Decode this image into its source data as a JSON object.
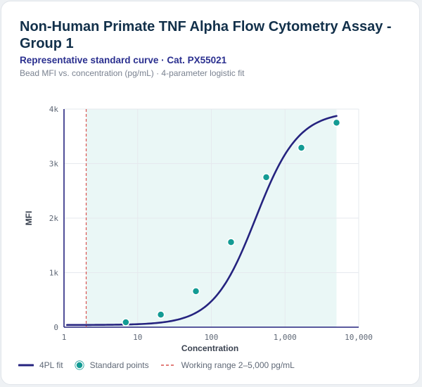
{
  "header": {
    "title": "Non-Human Primate TNF Alpha Flow Cytometry Assay - Group 1",
    "subtitle": "Representative standard curve · Cat. PX55021",
    "caption": "Bead MFI vs. concentration (pg/mL) · 4-parameter logistic fit"
  },
  "legend": {
    "fit_label": "4PL fit",
    "points_label": "Standard points",
    "range_label": "Working range 2–5,000 pg/mL"
  },
  "colors": {
    "fit": "#25237f",
    "points": "#139b94",
    "range_line": "#d9534f",
    "range_band": "#eaf7f6"
  },
  "chart_data": {
    "type": "scatter",
    "title": "",
    "xlabel": "Concentration",
    "ylabel": "MFI",
    "x_scale": "log",
    "xlim": [
      1,
      10000
    ],
    "ylim": [
      0,
      4000
    ],
    "x_ticks": [
      1,
      10,
      100,
      1000,
      10000
    ],
    "x_tick_labels": [
      "1",
      "10",
      "100",
      "1,000",
      "10,000"
    ],
    "y_ticks": [
      0,
      1000,
      2000,
      3000,
      4000
    ],
    "y_tick_labels": [
      "0",
      "1k",
      "2k",
      "3k",
      "4k"
    ],
    "grid": true,
    "working_range": [
      2,
      5000
    ],
    "series": [
      {
        "name": "Standard points",
        "x": [
          6.9,
          20.6,
          61.7,
          185,
          556,
          1667,
          5000
        ],
        "y": [
          90,
          230,
          660,
          1560,
          2750,
          3290,
          3750
        ]
      }
    ],
    "fit": {
      "name": "4PL fit",
      "model": "4PL",
      "a": 40,
      "b": 1.5,
      "c": 400,
      "d": 3960
    }
  }
}
